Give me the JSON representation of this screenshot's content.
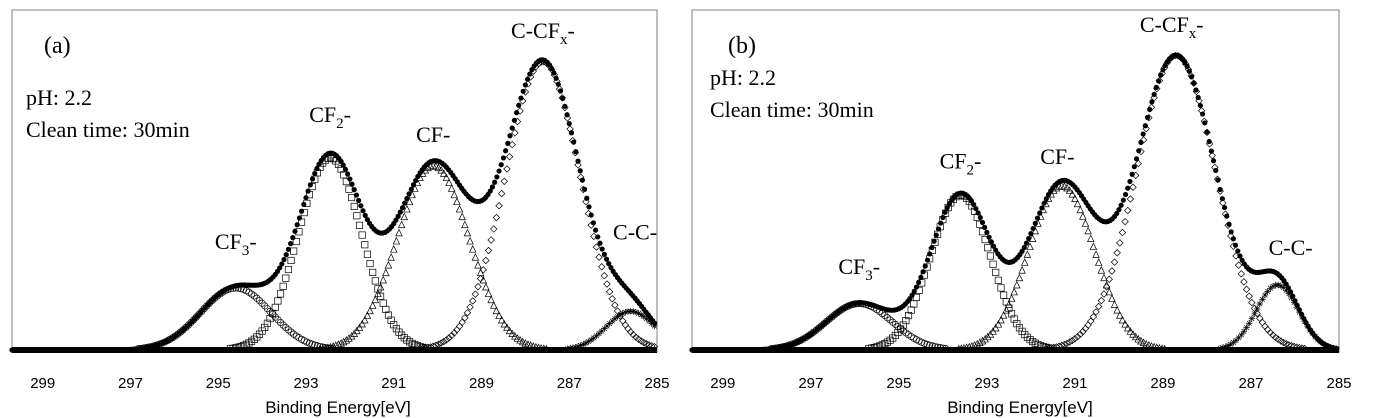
{
  "chart_data": [
    {
      "type": "line",
      "panel_label": "(a)",
      "info_lines": [
        "pH: 2.2",
        "Clean time: 30min"
      ],
      "xlabel": "Binding Energy[eV]",
      "ylabel": "",
      "xlim": [
        299.7,
        285
      ],
      "ylim": [
        0,
        1
      ],
      "xticks": [
        "299",
        "297",
        "295",
        "293",
        "291",
        "289",
        "287",
        "285"
      ],
      "x_reversed": true,
      "components": [
        {
          "name": "CF3-",
          "label_main": "CF",
          "label_sub": "3",
          "label_tail": "-",
          "center": 294.6,
          "height": 0.2,
          "width": 0.8,
          "marker": "circle",
          "label_x": 294.6,
          "label_y": 0.3
        },
        {
          "name": "CF2-",
          "label_main": "CF",
          "label_sub": "2",
          "label_tail": "-",
          "center": 292.45,
          "height": 0.62,
          "width": 0.72,
          "marker": "square",
          "label_x": 292.45,
          "label_y": 0.71
        },
        {
          "name": "CF-",
          "label_main": "CF-",
          "label_sub": "",
          "label_tail": "",
          "center": 290.1,
          "height": 0.595,
          "width": 0.82,
          "marker": "triangle",
          "label_x": 290.1,
          "label_y": 0.645
        },
        {
          "name": "C-CFx-",
          "label_main": "C-CF",
          "label_sub": "x",
          "label_tail": "-",
          "center": 287.6,
          "height": 0.93,
          "width": 0.85,
          "marker": "diamond",
          "label_x": 287.6,
          "label_y": 0.98
        },
        {
          "name": "C-C-",
          "label_main": "C-C-",
          "label_sub": "",
          "label_tail": "",
          "center": 285.6,
          "height": 0.125,
          "width": 0.55,
          "marker": "star",
          "label_x": 285.5,
          "label_y": 0.33
        }
      ]
    },
    {
      "type": "line",
      "panel_label": "(b)",
      "info_lines": [
        "pH: 2.2",
        "Clean time: 30min"
      ],
      "xlabel": "Binding Energy[eV]",
      "ylabel": "",
      "xlim": [
        299.7,
        285
      ],
      "ylim": [
        0,
        1
      ],
      "xticks": [
        "299",
        "297",
        "295",
        "293",
        "291",
        "289",
        "287",
        "285"
      ],
      "x_reversed": true,
      "components": [
        {
          "name": "CF3-",
          "label_main": "CF",
          "label_sub": "3",
          "label_tail": "-",
          "center": 295.9,
          "height": 0.15,
          "width": 0.75,
          "marker": "circle",
          "label_x": 295.9,
          "label_y": 0.22
        },
        {
          "name": "CF2-",
          "label_main": "CF",
          "label_sub": "2",
          "label_tail": "-",
          "center": 293.6,
          "height": 0.5,
          "width": 0.68,
          "marker": "square",
          "label_x": 293.6,
          "label_y": 0.56
        },
        {
          "name": "CF-",
          "label_main": "CF-",
          "label_sub": "",
          "label_tail": "",
          "center": 291.3,
          "height": 0.53,
          "width": 0.75,
          "marker": "triangle",
          "label_x": 291.4,
          "label_y": 0.575
        },
        {
          "name": "C-CFx-",
          "label_main": "C-CF",
          "label_sub": "x",
          "label_tail": "-",
          "center": 288.7,
          "height": 0.95,
          "width": 0.9,
          "marker": "diamond",
          "label_x": 288.8,
          "label_y": 1.0
        },
        {
          "name": "C-C-",
          "label_main": "C-C-",
          "label_sub": "",
          "label_tail": "",
          "center": 286.4,
          "height": 0.21,
          "width": 0.48,
          "marker": "star",
          "label_x": 286.1,
          "label_y": 0.28
        }
      ]
    }
  ]
}
